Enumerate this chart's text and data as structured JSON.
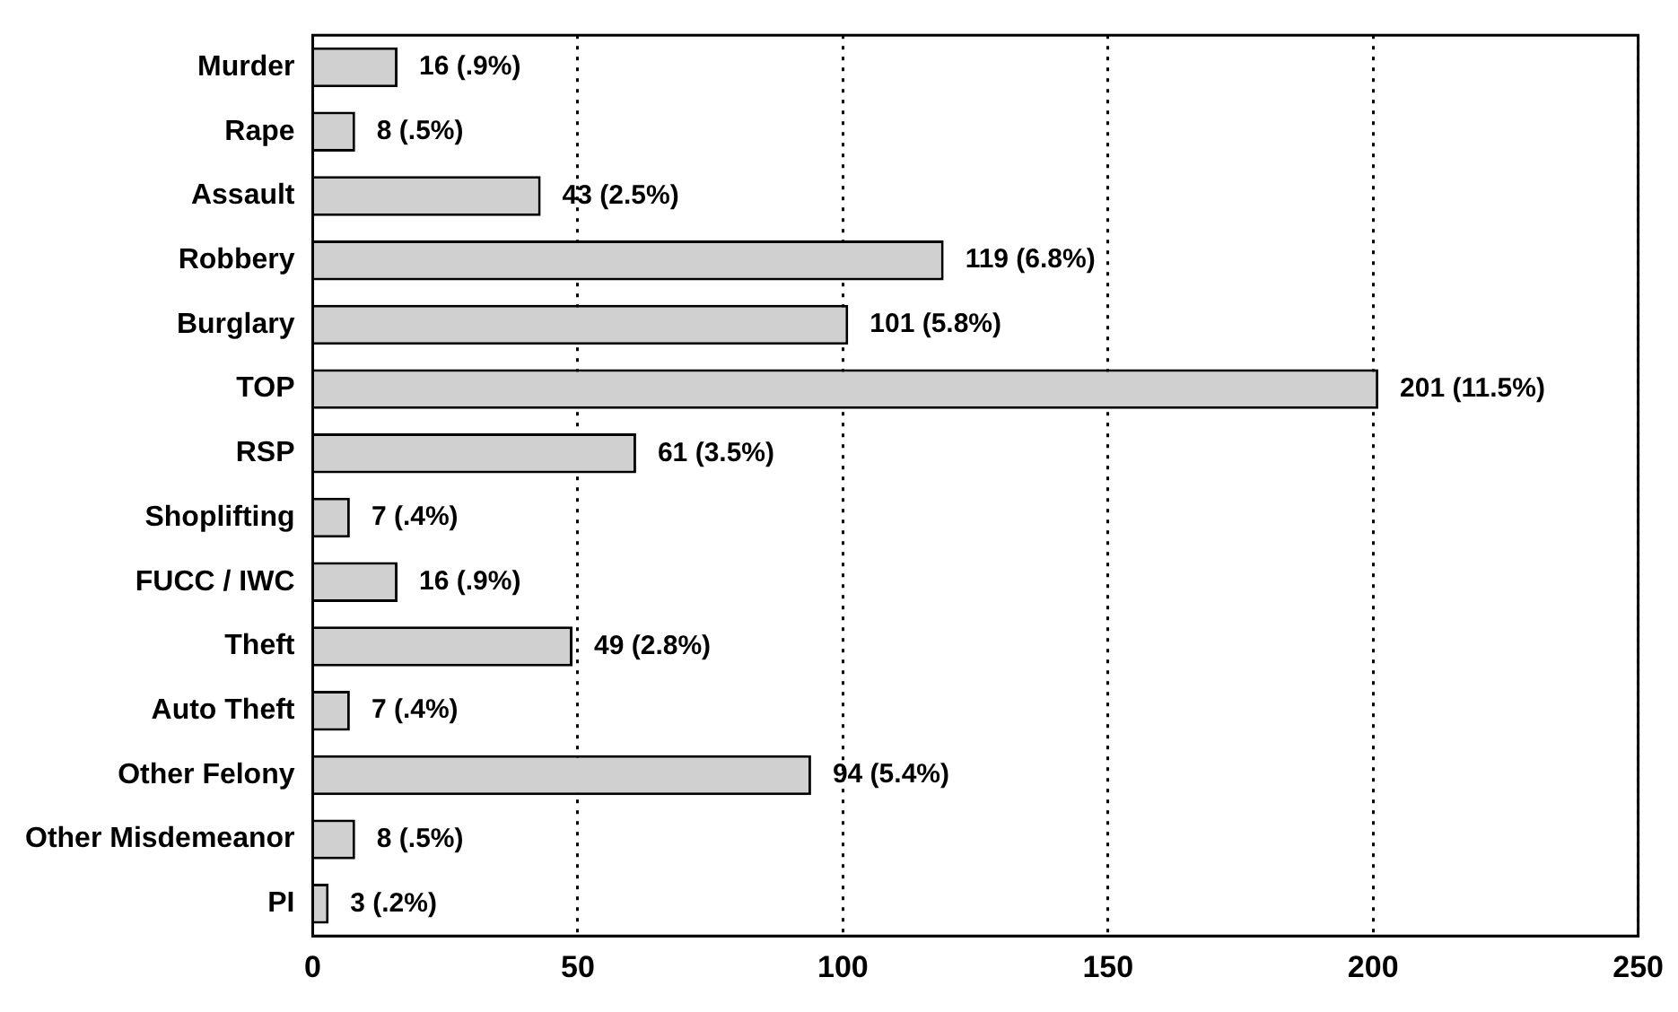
{
  "chart_data": {
    "type": "bar",
    "orientation": "horizontal",
    "categories": [
      "Murder",
      "Rape",
      "Assault",
      "Robbery",
      "Burglary",
      "TOP",
      "RSP",
      "Shoplifting",
      "FUCC / IWC",
      "Theft",
      "Auto Theft",
      "Other Felony",
      "Other Misdemeanor",
      "PI"
    ],
    "values": [
      16,
      8,
      43,
      119,
      101,
      201,
      61,
      7,
      16,
      49,
      7,
      94,
      8,
      3
    ],
    "value_labels": [
      "16 (.9%)",
      "8 (.5%)",
      "43 (2.5%)",
      "119 (6.8%)",
      "101 (5.8%)",
      "201 (11.5%)",
      "61 (3.5%)",
      "7 (.4%)",
      "16 (.9%)",
      "49 (2.8%)",
      "7 (.4%)",
      "94 (5.4%)",
      "8 (.5%)",
      "3 (.2%)"
    ],
    "color": "#d0d0d0",
    "xlim": [
      0,
      250
    ],
    "xticks": [
      0,
      50,
      100,
      150,
      200,
      250
    ],
    "grid": "x"
  }
}
